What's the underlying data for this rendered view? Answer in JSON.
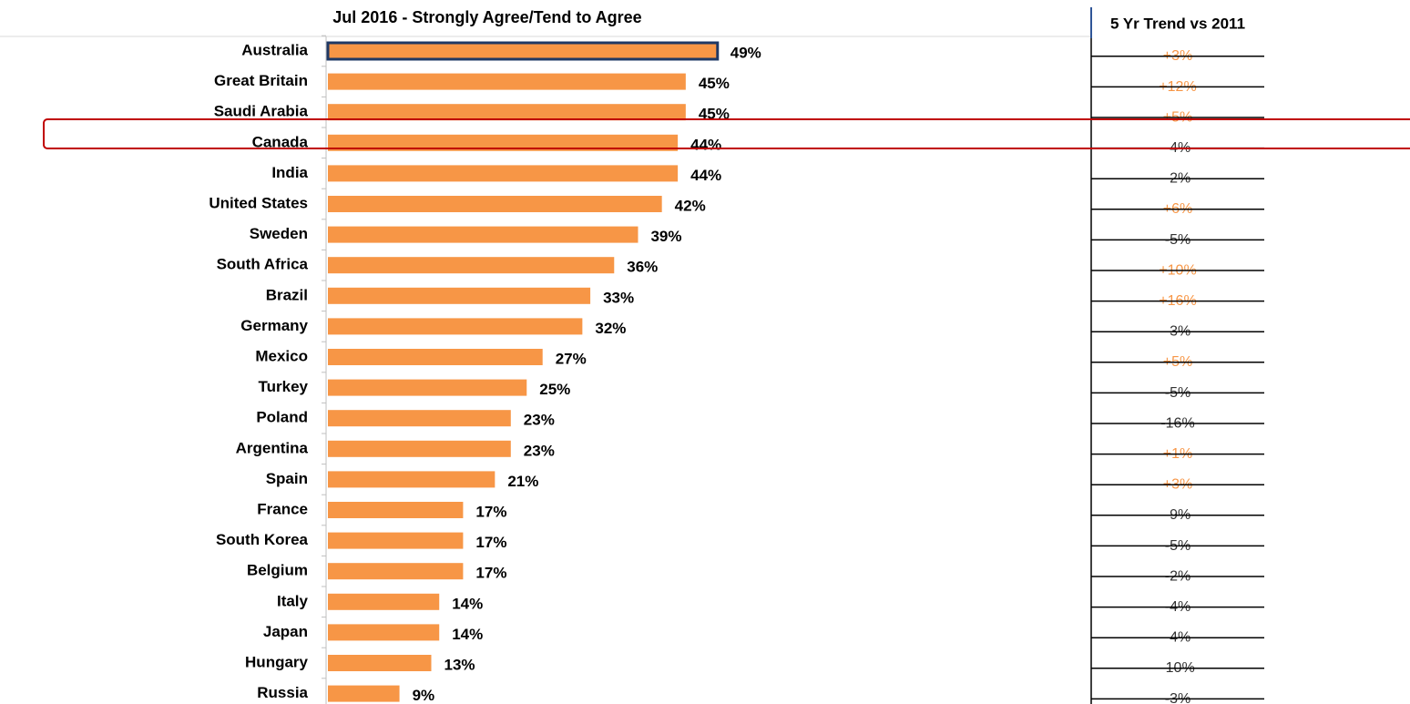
{
  "chart_data": {
    "type": "barh",
    "title": "Jul 2016 - Strongly Agree/Tend to Agree",
    "categories": [
      "Australia",
      "Great Britain",
      "Saudi Arabia",
      "Canada",
      "India",
      "United States",
      "Sweden",
      "South Africa",
      "Brazil",
      "Germany",
      "Mexico",
      "Turkey",
      "Poland",
      "Argentina",
      "Spain",
      "France",
      "South Korea",
      "Belgium",
      "Italy",
      "Japan",
      "Hungary",
      "Russia"
    ],
    "values": [
      49,
      45,
      45,
      44,
      44,
      42,
      39,
      36,
      33,
      32,
      27,
      25,
      23,
      23,
      21,
      17,
      17,
      17,
      14,
      14,
      13,
      9
    ],
    "value_labels": [
      "49%",
      "45%",
      "45%",
      "44%",
      "44%",
      "42%",
      "39%",
      "36%",
      "33%",
      "32%",
      "27%",
      "25%",
      "23%",
      "23%",
      "21%",
      "17%",
      "17%",
      "17%",
      "14%",
      "14%",
      "13%",
      "9%"
    ],
    "color": "#f79646",
    "highlight_category": "Australia",
    "highlight_border": "#1f3864",
    "trend": {
      "title": "5 Yr Trend vs 2011",
      "values": [
        "+3%",
        "+12%",
        "+5%",
        "-4%",
        "-2%",
        "+6%",
        "-5%",
        "+10%",
        "+16%",
        "-3%",
        "+5%",
        "-5%",
        "-16%",
        "+1%",
        "+3%",
        "-9%",
        "-5%",
        "-2%",
        "-4%",
        "-4%",
        "-10%",
        "-3%"
      ],
      "positive_color": "#f79646",
      "negative_color": "#333333"
    }
  }
}
